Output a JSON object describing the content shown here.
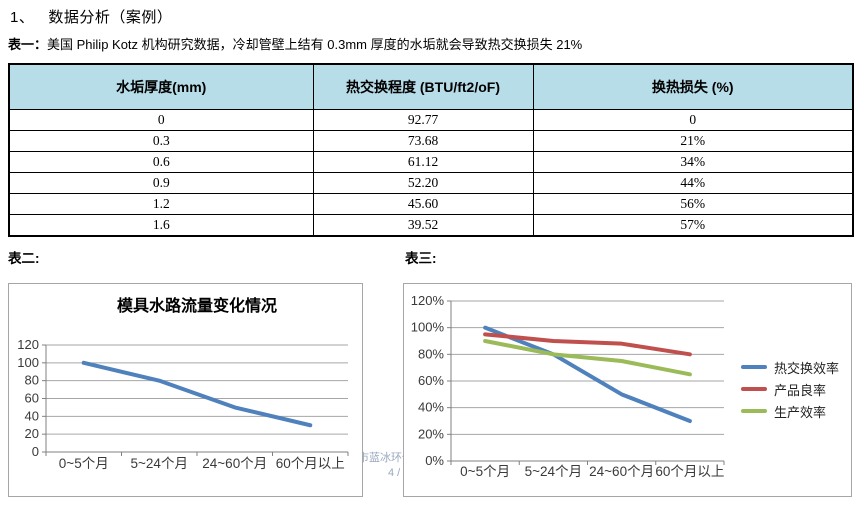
{
  "page": {
    "heading": "1、   数据分析（案例）"
  },
  "table1": {
    "caption_label": "表一：",
    "caption_text": "美国 Philip Kotz 机构研究数据，冷却管壁上结有 0.3mm 厚度的水垢就会导致热交换损失 21%",
    "headers": [
      "水垢厚度(mm)",
      "热交换程度 (BTU/ft2/oF)",
      "换热损失 (%)"
    ],
    "rows": [
      [
        "0",
        "92.77",
        "0"
      ],
      [
        "0.3",
        "73.68",
        "21%"
      ],
      [
        "0.6",
        "61.12",
        "34%"
      ],
      [
        "0.9",
        "52.20",
        "44%"
      ],
      [
        "1.2",
        "45.60",
        "56%"
      ],
      [
        "1.6",
        "39.52",
        "57%"
      ]
    ]
  },
  "chart_data": [
    {
      "id": "flow-chart",
      "label": "表二:",
      "type": "line",
      "title": "模具水路流量变化情况",
      "categories": [
        "0~5个月",
        "5~24个月",
        "24~60个月",
        "60个月以上"
      ],
      "series": [
        {
          "color": "#4F81BD",
          "values": [
            100,
            80,
            50,
            30
          ]
        }
      ],
      "ylim": [
        0,
        120
      ],
      "ytick_step": 20,
      "ytick_suffix": "",
      "grid": true,
      "legend": false
    },
    {
      "id": "efficiency-chart",
      "label": "表三:",
      "type": "line",
      "title": "",
      "categories": [
        "0~5个月",
        "5~24个月",
        "24~60个月",
        "60个月以上"
      ],
      "series": [
        {
          "name": "热交换效率",
          "color": "#4F81BD",
          "values": [
            100,
            80,
            50,
            30
          ]
        },
        {
          "name": "产品良率",
          "color": "#C0504D",
          "values": [
            95,
            90,
            88,
            80
          ]
        },
        {
          "name": "生产效率",
          "color": "#9BBB59",
          "values": [
            90,
            80,
            75,
            65
          ]
        }
      ],
      "ylim": [
        0,
        120
      ],
      "ytick_step": 20,
      "ytick_suffix": "%",
      "grid": true,
      "legend": true,
      "legend_position": "right"
    }
  ],
  "watermark": {
    "line1": "市蓝冰环保",
    "line2": "4 /"
  },
  "colors": {
    "header_fill": "#B6DDE8",
    "series_blue": "#4F81BD",
    "series_red": "#C0504D",
    "series_green": "#9BBB59",
    "watermark": "#9AA8BF",
    "gridline": "#A6A6A6",
    "axis": "#808080",
    "chart_border": "#A6A6A6"
  }
}
